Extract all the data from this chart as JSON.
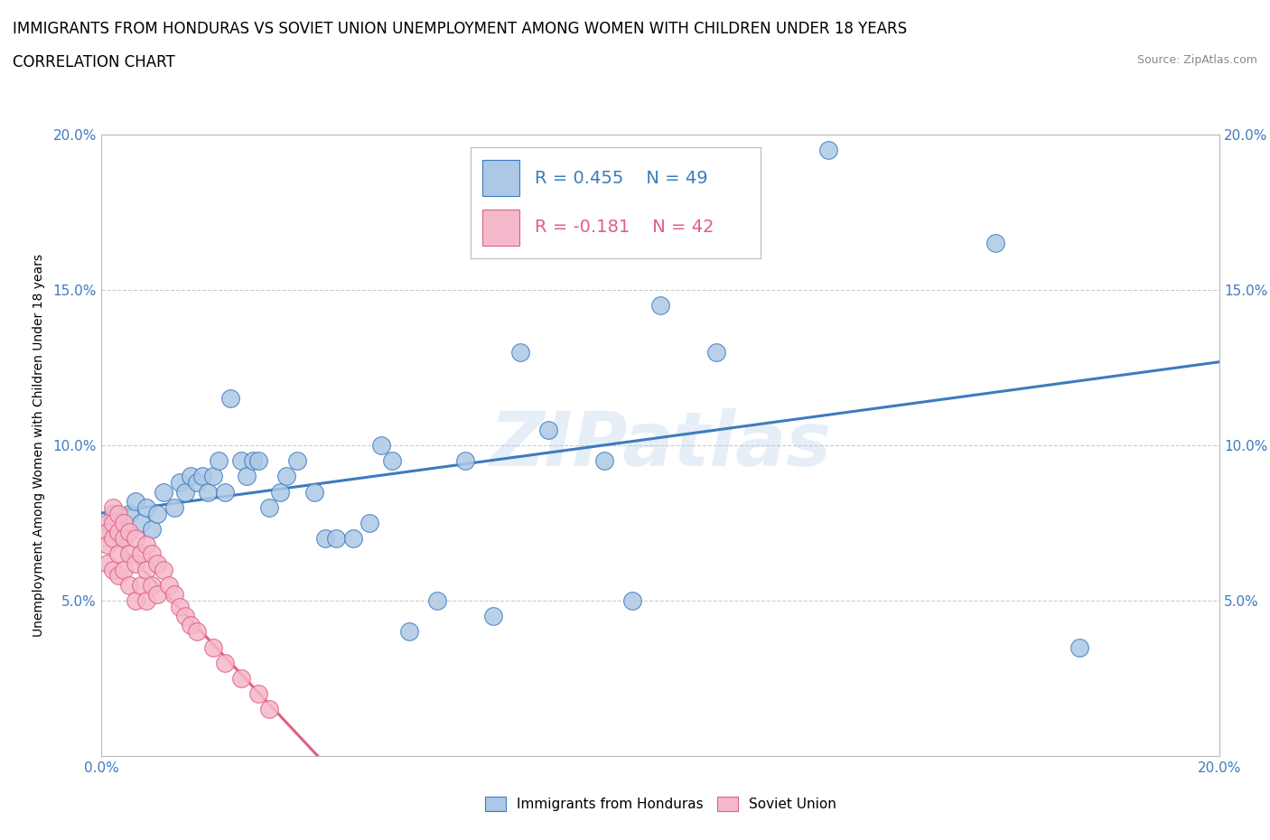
{
  "title_line1": "IMMIGRANTS FROM HONDURAS VS SOVIET UNION UNEMPLOYMENT AMONG WOMEN WITH CHILDREN UNDER 18 YEARS",
  "title_line2": "CORRELATION CHART",
  "source": "Source: ZipAtlas.com",
  "ylabel": "Unemployment Among Women with Children Under 18 years",
  "xlim": [
    0.0,
    0.2
  ],
  "ylim": [
    0.0,
    0.2
  ],
  "xtick_positions": [
    0.0,
    0.025,
    0.05,
    0.075,
    0.1,
    0.125,
    0.15,
    0.175,
    0.2
  ],
  "ytick_positions": [
    0.0,
    0.05,
    0.1,
    0.15,
    0.2
  ],
  "honduras_color": "#adc8e6",
  "soviet_color": "#f5b8cb",
  "honduras_line_color": "#3d7bbf",
  "soviet_line_color": "#e0607e",
  "watermark": "ZIPatlas",
  "legend_R_honduras": "R = 0.455",
  "legend_N_honduras": "N = 49",
  "legend_R_soviet": "R = -0.181",
  "legend_N_soviet": "N = 42",
  "honduras_x": [
    0.002,
    0.003,
    0.004,
    0.005,
    0.006,
    0.007,
    0.008,
    0.009,
    0.01,
    0.011,
    0.013,
    0.014,
    0.015,
    0.016,
    0.017,
    0.018,
    0.019,
    0.02,
    0.021,
    0.022,
    0.023,
    0.025,
    0.026,
    0.027,
    0.028,
    0.03,
    0.032,
    0.033,
    0.035,
    0.038,
    0.04,
    0.042,
    0.045,
    0.048,
    0.05,
    0.052,
    0.055,
    0.06,
    0.065,
    0.07,
    0.075,
    0.08,
    0.09,
    0.095,
    0.1,
    0.11,
    0.13,
    0.16,
    0.175
  ],
  "honduras_y": [
    0.078,
    0.075,
    0.07,
    0.078,
    0.082,
    0.075,
    0.08,
    0.073,
    0.078,
    0.085,
    0.08,
    0.088,
    0.085,
    0.09,
    0.088,
    0.09,
    0.085,
    0.09,
    0.095,
    0.085,
    0.115,
    0.095,
    0.09,
    0.095,
    0.095,
    0.08,
    0.085,
    0.09,
    0.095,
    0.085,
    0.07,
    0.07,
    0.07,
    0.075,
    0.1,
    0.095,
    0.04,
    0.05,
    0.095,
    0.045,
    0.13,
    0.105,
    0.095,
    0.05,
    0.145,
    0.13,
    0.195,
    0.165,
    0.035
  ],
  "soviet_x": [
    0.001,
    0.001,
    0.001,
    0.001,
    0.002,
    0.002,
    0.002,
    0.002,
    0.003,
    0.003,
    0.003,
    0.003,
    0.004,
    0.004,
    0.004,
    0.005,
    0.005,
    0.005,
    0.006,
    0.006,
    0.006,
    0.007,
    0.007,
    0.008,
    0.008,
    0.008,
    0.009,
    0.009,
    0.01,
    0.01,
    0.011,
    0.012,
    0.013,
    0.014,
    0.015,
    0.016,
    0.017,
    0.02,
    0.022,
    0.025,
    0.028,
    0.03
  ],
  "soviet_y": [
    0.075,
    0.072,
    0.068,
    0.062,
    0.08,
    0.075,
    0.07,
    0.06,
    0.078,
    0.072,
    0.065,
    0.058,
    0.075,
    0.07,
    0.06,
    0.072,
    0.065,
    0.055,
    0.07,
    0.062,
    0.05,
    0.065,
    0.055,
    0.068,
    0.06,
    0.05,
    0.065,
    0.055,
    0.062,
    0.052,
    0.06,
    0.055,
    0.052,
    0.048,
    0.045,
    0.042,
    0.04,
    0.035,
    0.03,
    0.025,
    0.02,
    0.015
  ],
  "background_color": "#ffffff",
  "grid_color": "#cccccc",
  "title_fontsize": 12,
  "subtitle_fontsize": 12,
  "axis_label_fontsize": 10,
  "tick_fontsize": 11,
  "legend_fontsize": 14
}
